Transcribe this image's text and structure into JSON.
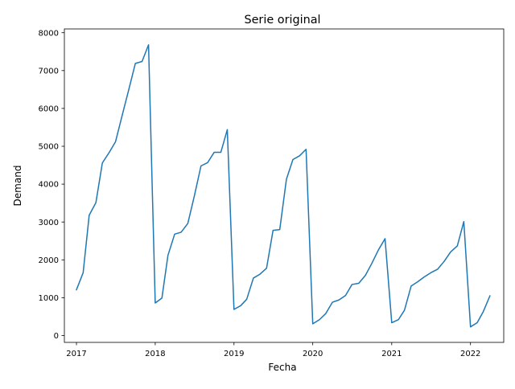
{
  "chart_data": {
    "type": "line",
    "title": "Serie original",
    "xlabel": "Fecha",
    "ylabel": "Demand",
    "xlim": [
      "2016-11-06",
      "2022-06-04"
    ],
    "ylim": [
      -180,
      8100
    ],
    "x_ticks": [
      "2017-01-01",
      "2018-01-01",
      "2019-01-01",
      "2020-01-01",
      "2021-01-01",
      "2022-01-01"
    ],
    "x_tick_labels": [
      "2017",
      "2018",
      "2019",
      "2020",
      "2021",
      "2022"
    ],
    "y_ticks": [
      0,
      1000,
      2000,
      3000,
      4000,
      5000,
      6000,
      7000,
      8000
    ],
    "y_tick_labels": [
      "0",
      "1000",
      "2000",
      "3000",
      "4000",
      "5000",
      "6000",
      "7000",
      "8000"
    ],
    "grid": false,
    "series": [
      {
        "color": "#1f77b4",
        "x": [
          "2017-01-01",
          "2017-02-01",
          "2017-03-01",
          "2017-04-01",
          "2017-05-01",
          "2017-06-01",
          "2017-07-01",
          "2017-08-01",
          "2017-09-01",
          "2017-10-01",
          "2017-11-01",
          "2017-12-01",
          "2018-01-01",
          "2018-02-01",
          "2018-03-01",
          "2018-04-01",
          "2018-05-01",
          "2018-06-01",
          "2018-07-01",
          "2018-08-01",
          "2018-09-01",
          "2018-10-01",
          "2018-11-01",
          "2018-12-01",
          "2019-01-01",
          "2019-02-01",
          "2019-03-01",
          "2019-04-01",
          "2019-05-01",
          "2019-06-01",
          "2019-07-01",
          "2019-08-01",
          "2019-09-01",
          "2019-10-01",
          "2019-11-01",
          "2019-12-01",
          "2020-01-01",
          "2020-02-01",
          "2020-03-01",
          "2020-04-01",
          "2020-05-01",
          "2020-06-01",
          "2020-07-01",
          "2020-08-01",
          "2020-09-01",
          "2020-10-01",
          "2020-11-01",
          "2020-12-01",
          "2021-01-01",
          "2021-02-01",
          "2021-03-01",
          "2021-04-01",
          "2021-05-01",
          "2021-06-01",
          "2021-07-01",
          "2021-08-01",
          "2021-09-01",
          "2021-10-01",
          "2021-11-01",
          "2021-12-01",
          "2022-01-01",
          "2022-02-01",
          "2022-03-01",
          "2022-04-01"
        ],
        "y": [
          1210,
          1660,
          3180,
          3510,
          4560,
          4830,
          5120,
          5820,
          6510,
          7190,
          7240,
          7680,
          860,
          990,
          2120,
          2680,
          2730,
          2960,
          3680,
          4480,
          4570,
          4840,
          4840,
          5440,
          690,
          790,
          960,
          1520,
          1620,
          1780,
          2780,
          2800,
          4130,
          4650,
          4750,
          4920,
          310,
          420,
          580,
          880,
          940,
          1060,
          1350,
          1380,
          1590,
          1910,
          2270,
          2560,
          340,
          420,
          670,
          1310,
          1420,
          1550,
          1660,
          1750,
          1960,
          2210,
          2370,
          3010,
          230,
          340,
          630,
          1050
        ]
      }
    ]
  }
}
